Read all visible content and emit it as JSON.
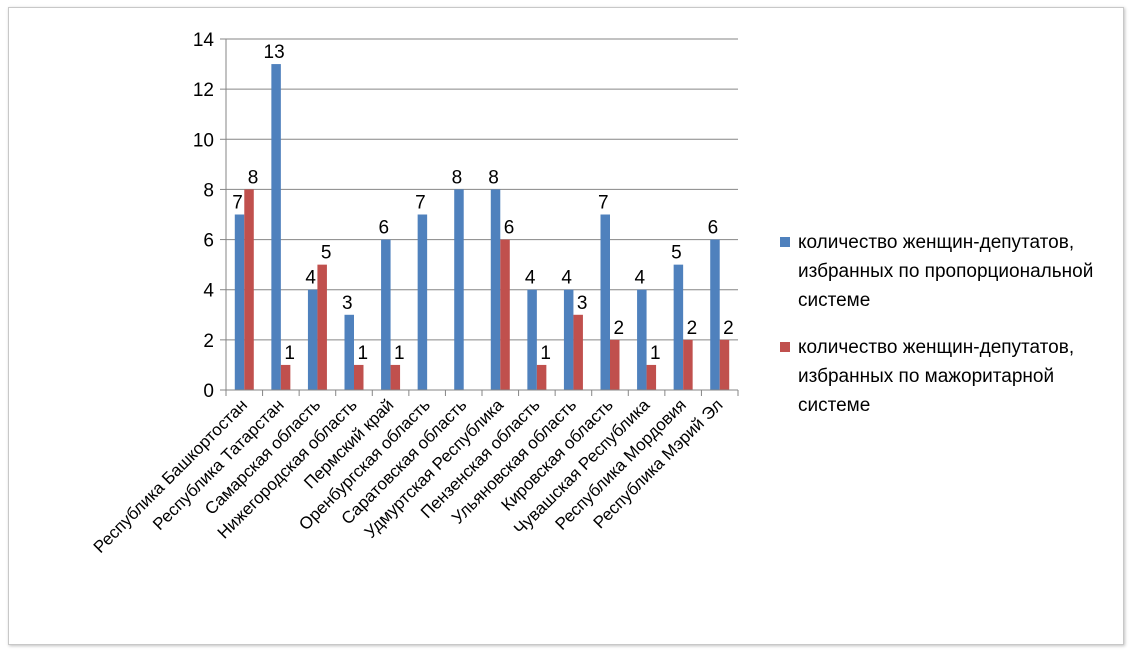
{
  "chart_data": {
    "type": "bar",
    "categories": [
      "Республика Башкортостан",
      "Республика Татарстан",
      "Самарская область",
      "Нижегородская область",
      "Пермский край",
      "Оренбургская область",
      "Саратовская область",
      "Удмуртская Республика",
      "Пензенская область",
      "Ульяновская область",
      "Кировская область",
      "Чувашская Республика",
      "Республика Мордовия",
      "Республика Мэрий Эл"
    ],
    "series": [
      {
        "name": "количество женщин-депутатов, избранных по пропорциональной системе",
        "color": "#4f81bd",
        "values": [
          7,
          13,
          4,
          3,
          6,
          7,
          8,
          8,
          4,
          4,
          7,
          4,
          5,
          6
        ]
      },
      {
        "name": "количество женщин-депутатов, избранных по мажоритарной системе",
        "color": "#c0504d",
        "values": [
          8,
          1,
          5,
          1,
          1,
          null,
          null,
          6,
          1,
          3,
          2,
          1,
          2,
          2
        ]
      }
    ],
    "ylim": [
      0,
      14
    ],
    "yticks": [
      "0",
      "2",
      "4",
      "6",
      "8",
      "10",
      "12",
      "14"
    ],
    "grid": true,
    "legend_position": "right",
    "title": "",
    "xlabel": "",
    "ylabel": ""
  }
}
